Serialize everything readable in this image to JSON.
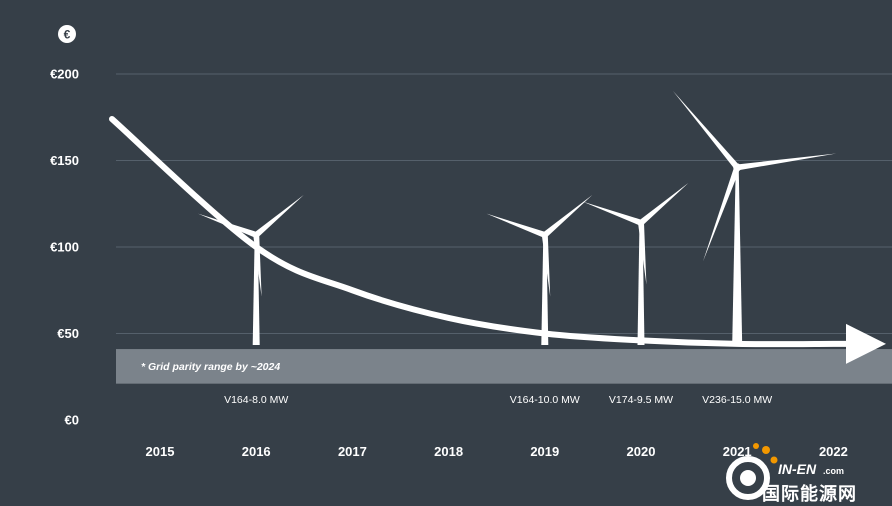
{
  "currency_symbol": "€",
  "chart_data": {
    "type": "line",
    "x_ticks": [
      "2015",
      "2016",
      "2017",
      "2018",
      "2019",
      "2020",
      "2021",
      "2022"
    ],
    "y_ticks": [
      "€200",
      "€150",
      "€100",
      "€50",
      "€0"
    ],
    "ylim": [
      0,
      200
    ],
    "grid": true,
    "series": [
      {
        "x": [
          2015,
          2016,
          2017,
          2018,
          2019,
          2020,
          2021,
          2022
        ],
        "values": [
          174,
          100,
          75,
          59,
          50,
          46,
          44,
          44
        ]
      }
    ],
    "band": {
      "from": 21,
      "to": 41,
      "label": "* Grid parity range by ~2024"
    },
    "turbines": [
      {
        "year": 2016,
        "label": "V164-8.0 MW",
        "hub": 107
      },
      {
        "year": 2019,
        "label": "V164-10.0 MW",
        "hub": 107
      },
      {
        "year": 2020,
        "label": "V174-9.5 MW",
        "hub": 114
      },
      {
        "year": 2021,
        "label": "V236-15.0 MW",
        "hub": 146
      }
    ]
  },
  "watermark": {
    "brand": "IN-EN",
    "domain": ".com",
    "chinese": "国际能源网"
  }
}
